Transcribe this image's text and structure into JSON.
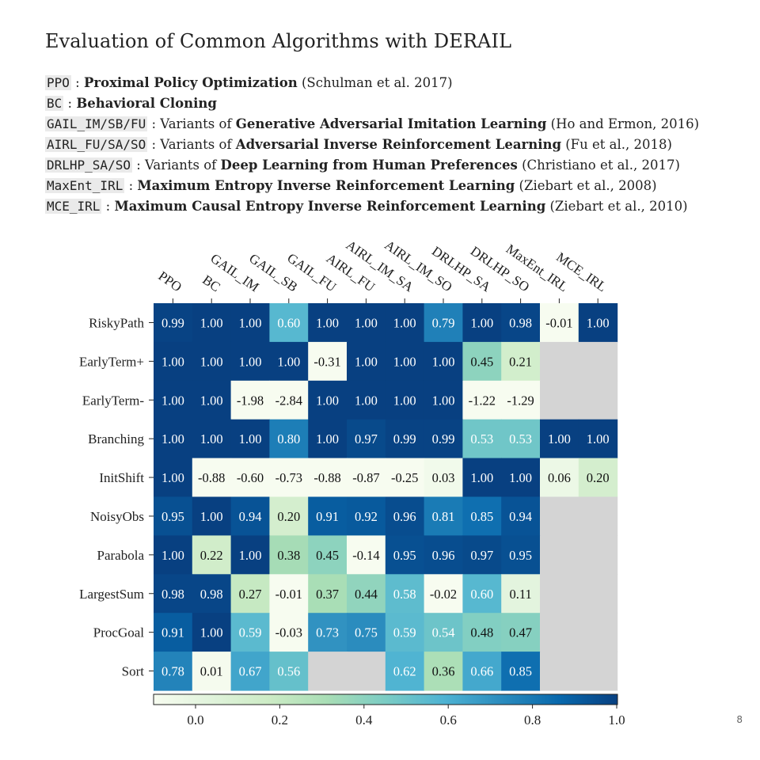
{
  "slide": {
    "title": "Evaluation of Common Algorithms with DERAIL",
    "page_number": "8",
    "legend_items": [
      {
        "code": "PPO",
        "sep": " : ",
        "pre": "",
        "bold": "Proximal Policy Optimization",
        "cite": " (Schulman et al. 2017)"
      },
      {
        "code": "BC",
        "sep": " : ",
        "pre": "",
        "bold": "Behavioral Cloning",
        "cite": ""
      },
      {
        "code": "GAIL_IM/SB/FU",
        "sep": " : ",
        "pre": "Variants of ",
        "bold": "Generative Adversarial Imitation Learning",
        "cite": " (Ho and Ermon, 2016)"
      },
      {
        "code": "AIRL_FU/SA/SO",
        "sep": " : ",
        "pre": "Variants of ",
        "bold": "Adversarial Inverse Reinforcement Learning",
        "cite": " (Fu et al., 2018)"
      },
      {
        "code": "DRLHP_SA/SO",
        "sep": " : ",
        "pre": "Variants of ",
        "bold": "Deep Learning from Human Preferences",
        "cite": " (Christiano et al., 2017)"
      },
      {
        "code": "MaxEnt_IRL",
        "sep": " : ",
        "pre": "",
        "bold": "Maximum Entropy Inverse Reinforcement Learning",
        "cite": " (Ziebart et al., 2008)"
      },
      {
        "code": "MCE_IRL",
        "sep": " : ",
        "pre": "",
        "bold": "Maximum Causal Entropy Inverse Reinforcement Learning",
        "cite": " (Ziebart et al., 2010)"
      }
    ]
  },
  "chart_data": {
    "type": "heatmap",
    "columns": [
      "PPO",
      "BC",
      "GAIL_IM",
      "GAIL_SB",
      "GAIL_FU",
      "AIRL_FU",
      "AIRL_IM_SA",
      "AIRL_IM_SO",
      "DRLHP_SA",
      "DRLHP_SO",
      "MaxEnt_IRL",
      "MCE_IRL"
    ],
    "rows": [
      "RiskyPath",
      "EarlyTerm+",
      "EarlyTerm-",
      "Branching",
      "InitShift",
      "NoisyObs",
      "Parabola",
      "LargestSum",
      "ProcGoal",
      "Sort"
    ],
    "values": [
      [
        0.99,
        1.0,
        1.0,
        0.6,
        1.0,
        1.0,
        1.0,
        0.79,
        1.0,
        0.98,
        -0.01,
        1.0
      ],
      [
        1.0,
        1.0,
        1.0,
        1.0,
        -0.31,
        1.0,
        1.0,
        1.0,
        0.45,
        0.21,
        null,
        null
      ],
      [
        1.0,
        1.0,
        -1.98,
        -2.84,
        1.0,
        1.0,
        1.0,
        1.0,
        -1.22,
        -1.29,
        null,
        null
      ],
      [
        1.0,
        1.0,
        1.0,
        0.8,
        1.0,
        0.97,
        0.99,
        0.99,
        0.53,
        0.53,
        1.0,
        1.0
      ],
      [
        1.0,
        -0.88,
        -0.6,
        -0.73,
        -0.88,
        -0.87,
        -0.25,
        0.03,
        1.0,
        1.0,
        0.06,
        0.2
      ],
      [
        0.95,
        1.0,
        0.94,
        0.2,
        0.91,
        0.92,
        0.96,
        0.81,
        0.85,
        0.94,
        null,
        null
      ],
      [
        1.0,
        0.22,
        1.0,
        0.38,
        0.45,
        -0.14,
        0.95,
        0.96,
        0.97,
        0.95,
        null,
        null
      ],
      [
        0.98,
        0.98,
        0.27,
        -0.01,
        0.37,
        0.44,
        0.58,
        -0.02,
        0.6,
        0.11,
        null,
        null
      ],
      [
        0.91,
        1.0,
        0.59,
        -0.03,
        0.73,
        0.75,
        0.59,
        0.54,
        0.48,
        0.47,
        null,
        null
      ],
      [
        0.78,
        0.01,
        0.67,
        0.56,
        null,
        null,
        0.62,
        0.36,
        0.66,
        0.85,
        null,
        null
      ]
    ],
    "colorbar": {
      "ticks": [
        "0.0",
        "0.2",
        "0.4",
        "0.6",
        "0.8",
        "1.0"
      ],
      "range": [
        0.0,
        1.0
      ],
      "colormap": "GnBu",
      "missing_color": "#d4d4d4"
    }
  }
}
